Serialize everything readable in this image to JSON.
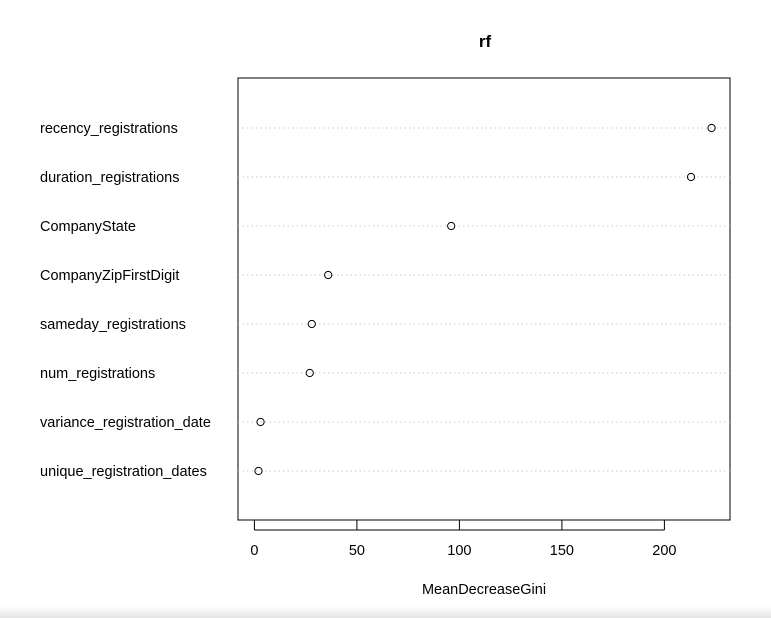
{
  "chart_data": {
    "type": "scatter",
    "title": "rf",
    "xlabel": "MeanDecreaseGini",
    "ylabel": "",
    "xlim": [
      -8,
      232
    ],
    "x_ticks": [
      "0",
      "50",
      "100",
      "150",
      "200"
    ],
    "x_tick_values": [
      0,
      50,
      100,
      150,
      200
    ],
    "grid": "dotted horizontal guide lines per variable",
    "categories": [
      "recency_registrations",
      "duration_registrations",
      "CompanyState",
      "CompanyZipFirstDigit",
      "sameday_registrations",
      "num_registrations",
      "variance_registration_date",
      "unique_registration_dates"
    ],
    "values": [
      223,
      213,
      96,
      36,
      28,
      27,
      3,
      2
    ]
  }
}
